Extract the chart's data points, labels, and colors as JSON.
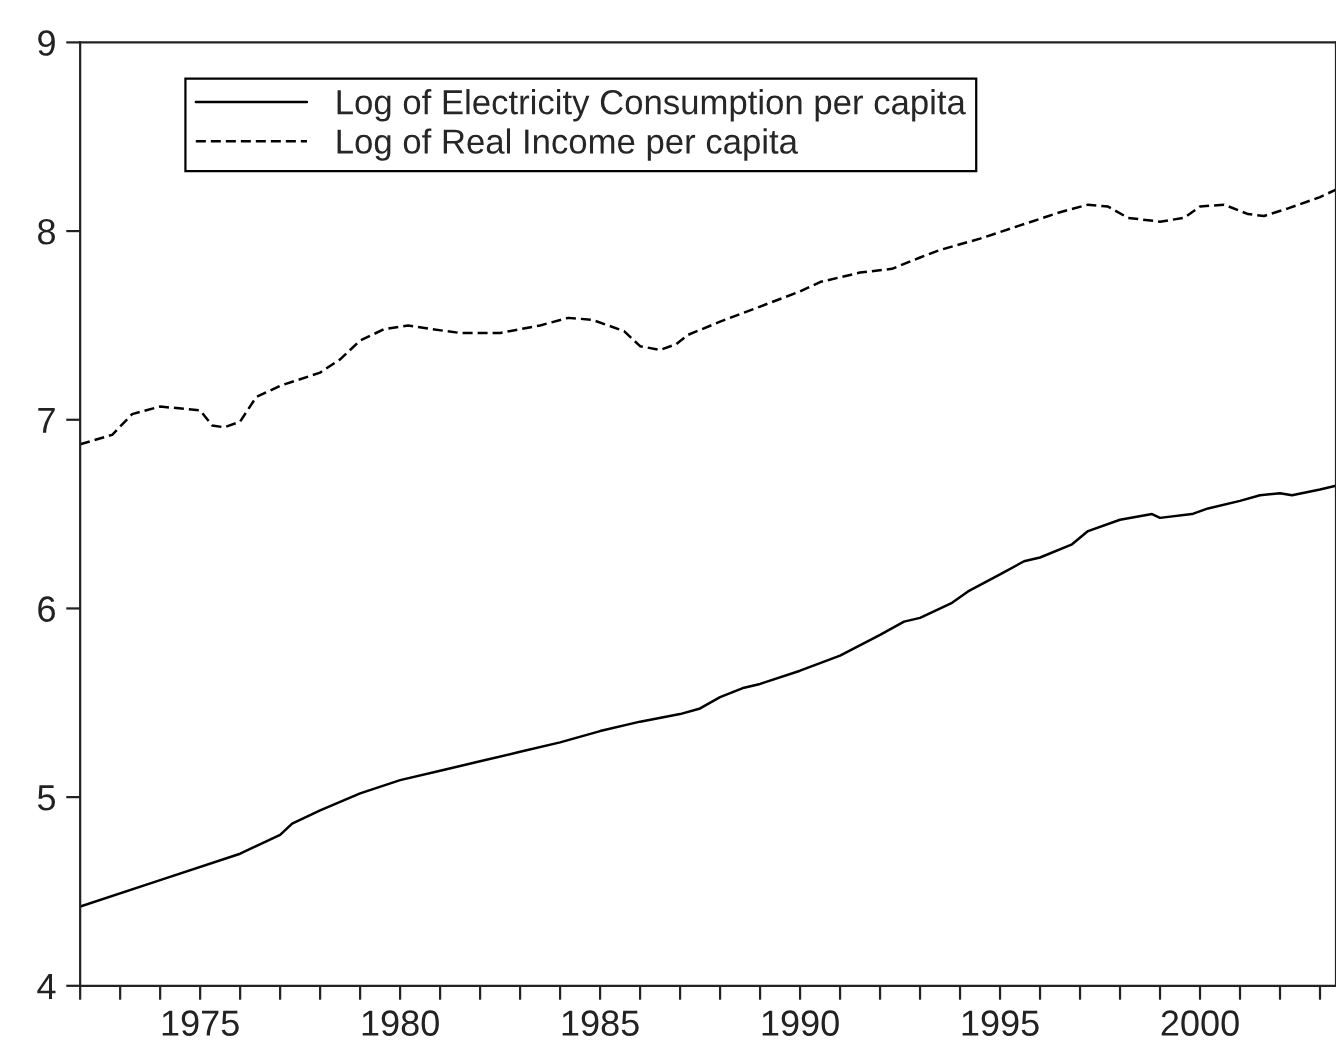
{
  "chart_data": {
    "type": "line",
    "xlim": [
      1972,
      2003.4
    ],
    "ylim": [
      4,
      9
    ],
    "yticks": [
      4,
      5,
      6,
      7,
      8,
      9
    ],
    "xticks": [
      {
        "value": 1972,
        "label": null
      },
      {
        "value": 1973,
        "label": null
      },
      {
        "value": 1974,
        "label": null
      },
      1975,
      {
        "value": 1976,
        "label": null
      },
      {
        "value": 1977,
        "label": null
      },
      {
        "value": 1978,
        "label": null
      },
      {
        "value": 1979,
        "label": null
      },
      1980,
      {
        "value": 1981,
        "label": null
      },
      {
        "value": 1982,
        "label": null
      },
      {
        "value": 1983,
        "label": null
      },
      {
        "value": 1984,
        "label": null
      },
      1985,
      {
        "value": 1986,
        "label": null
      },
      {
        "value": 1987,
        "label": null
      },
      {
        "value": 1988,
        "label": null
      },
      {
        "value": 1989,
        "label": null
      },
      1990,
      {
        "value": 1991,
        "label": null
      },
      {
        "value": 1992,
        "label": null
      },
      {
        "value": 1993,
        "label": null
      },
      {
        "value": 1994,
        "label": null
      },
      1995,
      {
        "value": 1996,
        "label": null
      },
      {
        "value": 1997,
        "label": null
      },
      {
        "value": 1998,
        "label": null
      },
      {
        "value": 1999,
        "label": null
      },
      2000,
      {
        "value": 2001,
        "label": null
      },
      {
        "value": 2002,
        "label": null
      },
      {
        "value": 2003,
        "label": null
      }
    ],
    "grid": false,
    "legend": "top left",
    "marker": "none",
    "series": [
      {
        "name": "Log of Electricity Consumption per capita",
        "color": "#000000",
        "line_style": "solid",
        "x": [
          1972,
          1974,
          1976,
          1977,
          1977.3,
          1978,
          1979,
          1980,
          1981,
          1982,
          1983,
          1984,
          1985,
          1986,
          1987,
          1987.5,
          1988,
          1988.6,
          1989,
          1990,
          1991,
          1992,
          1992.6,
          1993,
          1993.8,
          1994.2,
          1995,
          1995.6,
          1996,
          1996.8,
          1997.2,
          1998,
          1998.8,
          1999,
          1999.8,
          2000.2,
          2001,
          2001.5,
          2002,
          2002.3,
          2003,
          2003.4
        ],
        "values": [
          4.42,
          4.56,
          4.7,
          4.8,
          4.86,
          4.93,
          5.02,
          5.09,
          5.14,
          5.19,
          5.24,
          5.29,
          5.35,
          5.4,
          5.44,
          5.47,
          5.53,
          5.58,
          5.6,
          5.67,
          5.75,
          5.86,
          5.93,
          5.95,
          6.03,
          6.09,
          6.18,
          6.25,
          6.27,
          6.34,
          6.41,
          6.47,
          6.5,
          6.48,
          6.5,
          6.53,
          6.57,
          6.6,
          6.61,
          6.6,
          6.63,
          6.65
        ]
      },
      {
        "name": "Log of Real Income per capita",
        "color": "#000000",
        "line_style": "dashed",
        "x": [
          1972,
          1972.8,
          1973.3,
          1974,
          1975,
          1975.3,
          1975.6,
          1976,
          1976.4,
          1977,
          1978,
          1978.5,
          1979,
          1979.6,
          1980.2,
          1980.8,
          1981.5,
          1982.5,
          1983.5,
          1984.2,
          1984.8,
          1985.6,
          1986,
          1986.5,
          1986.9,
          1987.2,
          1988,
          1989,
          1990,
          1990.5,
          1991.5,
          1992.3,
          1993,
          1993.5,
          1994.5,
          1995.5,
          1996.5,
          1997.2,
          1997.7,
          1998.2,
          1999,
          1999.6,
          2000,
          2000.6,
          2001.2,
          2001.6,
          2002.2,
          2003,
          2003.4
        ],
        "values": [
          6.87,
          6.92,
          7.03,
          7.07,
          7.05,
          6.97,
          6.96,
          6.99,
          7.12,
          7.18,
          7.25,
          7.32,
          7.42,
          7.48,
          7.5,
          7.48,
          7.46,
          7.46,
          7.5,
          7.54,
          7.53,
          7.47,
          7.39,
          7.37,
          7.4,
          7.45,
          7.52,
          7.6,
          7.68,
          7.73,
          7.78,
          7.8,
          7.86,
          7.9,
          7.96,
          8.03,
          8.1,
          8.14,
          8.13,
          8.07,
          8.05,
          8.07,
          8.13,
          8.14,
          8.09,
          8.08,
          8.12,
          8.18,
          8.22
        ]
      }
    ]
  }
}
